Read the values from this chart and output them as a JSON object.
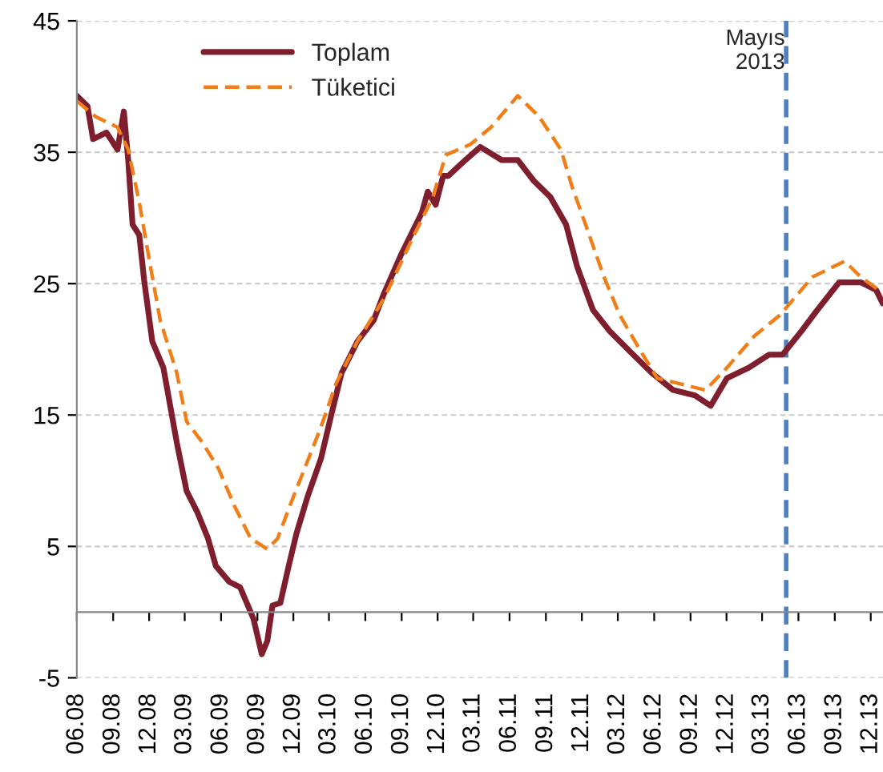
{
  "chart_data": {
    "type": "line",
    "ylim": [
      -5,
      45
    ],
    "yticks": [
      -5,
      5,
      15,
      25,
      35,
      45
    ],
    "xlim": [
      "2008-06-01",
      "2014-01-01"
    ],
    "xticks": [
      {
        "value": "2008-06",
        "label": "06.08"
      },
      {
        "value": "2008-09",
        "label": "09.08"
      },
      {
        "value": "2008-12",
        "label": "12.08"
      },
      {
        "value": "2009-03",
        "label": "03.09"
      },
      {
        "value": "2009-06",
        "label": "06.09"
      },
      {
        "value": "2009-09",
        "label": "09.09"
      },
      {
        "value": "2009-12",
        "label": "12.09"
      },
      {
        "value": "2010-03",
        "label": "03.10"
      },
      {
        "value": "2010-06",
        "label": "06.10"
      },
      {
        "value": "2010-09",
        "label": "09.10"
      },
      {
        "value": "2010-12",
        "label": "12.10"
      },
      {
        "value": "2011-03",
        "label": "03.11"
      },
      {
        "value": "2011-06",
        "label": "06.11"
      },
      {
        "value": "2011-09",
        "label": "09.11"
      },
      {
        "value": "2011-12",
        "label": "12.11"
      },
      {
        "value": "2012-03",
        "label": "03.12"
      },
      {
        "value": "2012-06",
        "label": "06.12"
      },
      {
        "value": "2012-09",
        "label": "09.12"
      },
      {
        "value": "2012-12",
        "label": "12.12"
      },
      {
        "value": "2013-03",
        "label": "03.13"
      },
      {
        "value": "2013-06",
        "label": "06.13"
      },
      {
        "value": "2013-09",
        "label": "09.13"
      },
      {
        "value": "2013-12",
        "label": "12.13"
      }
    ],
    "grid": "y",
    "legend": "top left",
    "ref_lines": [
      {
        "axis": "x",
        "value": "2013-05",
        "label": "Mayıs\n2013",
        "color": "#4a7fc1",
        "line_style": "dashed"
      }
    ],
    "series": [
      {
        "name": "Toplam",
        "color": "#7f1f2e",
        "line_style": "solid",
        "x": [
          "2008-06-01",
          "2008-06-28",
          "2008-07-12",
          "2008-08-15",
          "2008-09-12",
          "2008-09-28",
          "2008-10-09",
          "2008-10-20",
          "2008-11-06",
          "2008-11-19",
          "2008-12-09",
          "2009-01-06",
          "2009-02-09",
          "2009-03-06",
          "2009-04-02",
          "2009-04-29",
          "2009-05-19",
          "2009-06-22",
          "2009-07-19",
          "2009-08-22",
          "2009-09-12",
          "2009-09-26",
          "2009-10-09",
          "2009-10-29",
          "2009-11-19",
          "2009-12-09",
          "2010-01-06",
          "2010-02-09",
          "2010-03-06",
          "2010-04-02",
          "2010-05-12",
          "2010-06-22",
          "2010-07-19",
          "2010-08-29",
          "2010-10-22",
          "2010-11-06",
          "2010-11-26",
          "2010-12-15",
          "2010-12-28",
          "2011-02-09",
          "2011-03-19",
          "2011-05-12",
          "2011-06-22",
          "2011-08-02",
          "2011-09-12",
          "2011-10-22",
          "2011-11-19",
          "2011-12-29",
          "2012-02-09",
          "2012-04-02",
          "2012-05-26",
          "2012-07-19",
          "2012-09-12",
          "2012-10-22",
          "2012-12-02",
          "2013-01-26",
          "2013-03-19",
          "2013-04-22",
          "2013-06-09",
          "2013-07-19",
          "2013-09-12",
          "2013-11-06",
          "2013-12-15",
          "2013-12-31"
        ],
        "values": [
          39.3,
          38.5,
          36.0,
          36.5,
          35.2,
          38.1,
          34.4,
          29.5,
          28.7,
          25.1,
          20.6,
          18.6,
          12.9,
          9.2,
          7.6,
          5.6,
          3.5,
          2.3,
          1.9,
          -0.5,
          -3.2,
          -2.2,
          0.5,
          0.7,
          3.5,
          6.0,
          8.8,
          11.7,
          14.9,
          18.2,
          20.6,
          22.2,
          24.3,
          27.1,
          30.4,
          32.0,
          31.0,
          33.2,
          33.2,
          34.4,
          35.4,
          34.4,
          34.4,
          32.8,
          31.6,
          29.5,
          26.3,
          23.0,
          21.4,
          19.8,
          18.2,
          16.9,
          16.5,
          15.7,
          17.8,
          18.6,
          19.6,
          19.6,
          21.4,
          23.0,
          25.1,
          25.1,
          24.5,
          23.5
        ]
      },
      {
        "name": "Tüketici",
        "color": "#f07f1a",
        "line_style": "dashed",
        "x": [
          "2008-06-01",
          "2008-07-19",
          "2008-09-12",
          "2008-10-09",
          "2008-11-06",
          "2008-12-02",
          "2008-12-29",
          "2009-02-09",
          "2009-03-06",
          "2009-04-15",
          "2009-05-26",
          "2009-07-06",
          "2009-08-15",
          "2009-09-26",
          "2009-10-22",
          "2009-11-26",
          "2009-12-29",
          "2010-02-09",
          "2010-03-19",
          "2010-05-12",
          "2010-07-19",
          "2010-09-26",
          "2010-11-19",
          "2010-12-22",
          "2011-02-22",
          "2011-04-15",
          "2011-06-22",
          "2011-08-15",
          "2011-10-09",
          "2011-11-06",
          "2011-12-15",
          "2012-01-26",
          "2012-03-06",
          "2012-04-29",
          "2012-06-09",
          "2012-08-02",
          "2012-10-09",
          "2012-12-02",
          "2013-02-09",
          "2013-04-15",
          "2013-07-06",
          "2013-09-26",
          "2013-11-06",
          "2013-12-31"
        ],
        "values": [
          38.9,
          37.7,
          36.9,
          35.2,
          31.2,
          26.7,
          22.2,
          18.2,
          14.5,
          12.9,
          10.9,
          8.0,
          5.6,
          4.8,
          5.6,
          8.4,
          10.9,
          14.1,
          17.4,
          20.6,
          23.9,
          28.3,
          31.6,
          34.8,
          35.6,
          36.9,
          39.3,
          37.7,
          35.2,
          32.4,
          29.1,
          25.5,
          22.6,
          19.8,
          17.8,
          17.4,
          16.9,
          18.6,
          21.0,
          22.6,
          25.5,
          26.7,
          25.5,
          24.3
        ]
      }
    ]
  }
}
